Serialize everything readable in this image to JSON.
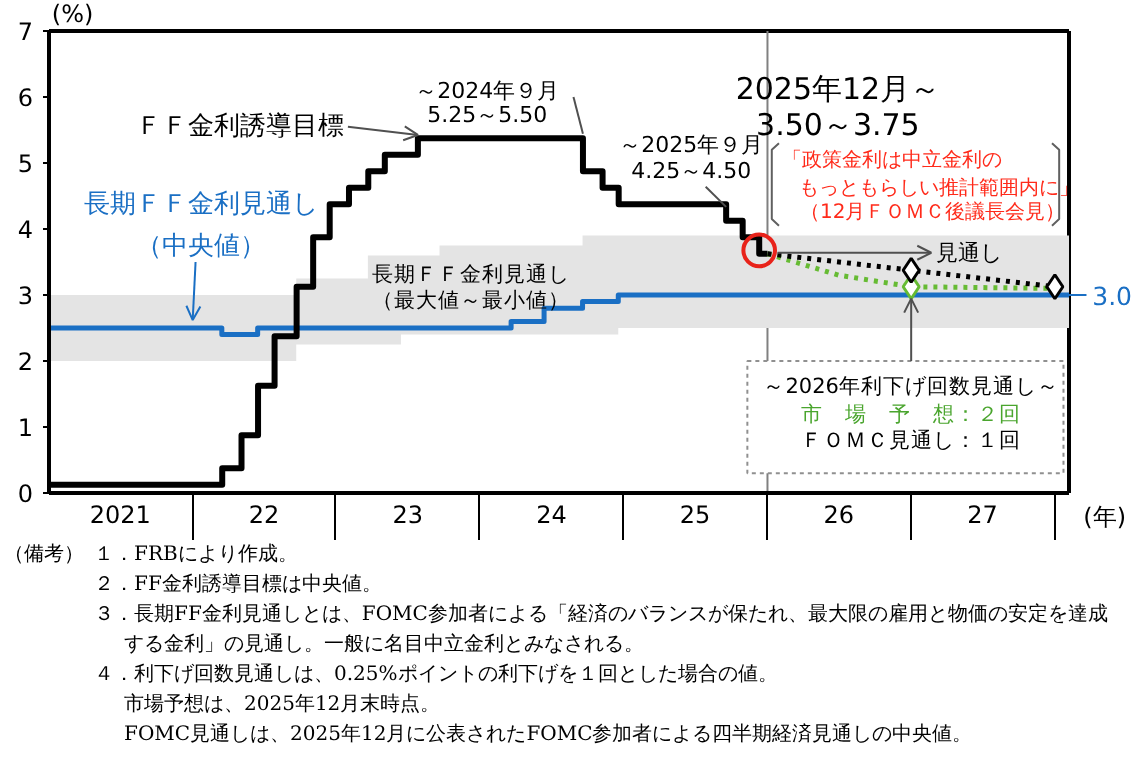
{
  "chart_data": {
    "type": "line",
    "xlabel": "(年)",
    "ylabel": "(%)",
    "xlim": [
      "2021-01-01",
      "2028-02-06"
    ],
    "ylim": [
      0,
      7
    ],
    "yticks": [
      0,
      1,
      2,
      3,
      4,
      5,
      6,
      7
    ],
    "xticks": [
      {
        "value": "2021-07",
        "label": "2021"
      },
      {
        "value": "2022-07",
        "label": "22"
      },
      {
        "value": "2023-07",
        "label": "23"
      },
      {
        "value": "2024-07",
        "label": "24"
      },
      {
        "value": "2025-07",
        "label": "25"
      },
      {
        "value": "2026-07",
        "label": "26"
      },
      {
        "value": "2027-07",
        "label": "27"
      }
    ],
    "grid": false,
    "ref_lines": [
      {
        "axis": "x",
        "value": "2026-01-01",
        "color": "#808080"
      }
    ],
    "series": [
      {
        "type": "step",
        "color": "#1a6fc4",
        "x": [
          "2021-01-01",
          "2022-03-16",
          "2022-06-15",
          "2022-09-21",
          "2023-03-22",
          "2023-06-14",
          "2023-09-20",
          "2024-03-20",
          "2024-06-12",
          "2024-09-18",
          "2024-12-18",
          "2028-02-06"
        ],
        "values": [
          2.5,
          2.4,
          2.5,
          2.5,
          2.5,
          2.5,
          2.5,
          2.6,
          2.8,
          2.9,
          3.0,
          3.0
        ],
        "lower": [
          2.0,
          2.0,
          2.0,
          2.25,
          2.25,
          2.4,
          2.4,
          2.4,
          2.4,
          2.4,
          2.5,
          2.5
        ],
        "upper": [
          3.0,
          3.0,
          3.0,
          3.25,
          3.6,
          3.6,
          3.75,
          3.75,
          3.75,
          3.9,
          3.9,
          3.9
        ]
      },
      {
        "type": "step",
        "color": "#000000",
        "x": [
          "2021-01-01",
          "2022-03-17",
          "2022-05-05",
          "2022-06-16",
          "2022-07-28",
          "2022-09-22",
          "2022-11-03",
          "2022-12-15",
          "2023-02-02",
          "2023-03-23",
          "2023-05-04",
          "2023-07-27",
          "2024-09-19",
          "2024-11-08",
          "2024-12-19",
          "2025-09-18",
          "2025-10-30",
          "2025-12-11",
          "2026-01-01"
        ],
        "values": [
          0.125,
          0.375,
          0.875,
          1.625,
          2.375,
          3.125,
          3.875,
          4.375,
          4.625,
          4.875,
          5.125,
          5.375,
          4.875,
          4.625,
          4.375,
          4.125,
          3.875,
          3.625,
          3.625
        ]
      },
      {
        "line_style": "dotted",
        "color": "#66bb33",
        "x": [
          "2026-01-01",
          "2026-07-01",
          "2027-01-01",
          "2028-01-01"
        ],
        "values": [
          3.625,
          3.3,
          3.125,
          3.1
        ]
      },
      {
        "line_style": "dotted",
        "color": "#000000",
        "x": [
          "2026-01-01",
          "2027-01-01",
          "2028-01-01"
        ],
        "values": [
          3.625,
          3.375,
          3.125
        ]
      },
      {
        "type": "scatter",
        "marker": "diamond",
        "color": "#66bb33",
        "x": [
          "2027-01-01"
        ],
        "values": [
          3.125
        ]
      },
      {
        "type": "scatter",
        "marker": "diamond",
        "color": "#000000",
        "x": [
          "2027-01-01",
          "2028-01-01"
        ],
        "values": [
          3.375,
          3.125
        ]
      }
    ],
    "annotations": [
      {
        "text": "ＦＦ金利誘導目標",
        "x": "2023-07-27",
        "y": 5.375
      },
      {
        "text": "～2024年９月\n5.25～5.50",
        "x": "2024-09-19",
        "y": 5.375
      },
      {
        "text": "～2025年９月\n4.25～4.50",
        "x": "2025-09-18",
        "y": 4.375
      },
      "2025年12月～\n3.50～3.75",
      "「政策金利は中立金利のもっともらしい推計範囲内に」",
      "（12月ＦＯＭＣ後議長会見）",
      {
        "text": "長期ＦＦ金利見通し（中央値）",
        "x": "2022-01-01",
        "y": 2.5
      },
      "長期ＦＦ金利見通し（最大値～最小値）",
      "見通し",
      {
        "text": "3.0",
        "x": "2028-02-06",
        "y": 3.0
      },
      {
        "text": "～2026年利下げ回数見通し～",
        "x": "2027-01-01",
        "y": 3.125
      },
      "市　場　予　想：２回",
      "ＦＯＭＣ見通し：１回",
      "（備考）",
      "１．FRBにより作成。",
      "２．FF金利誘導目標は中央値。",
      "３．長期FF金利見通しとは、FOMC参加者による「経済のバランスが保たれ、最大限の雇用と物価の安定を達成する金利」の見通し。一般に名目中立金利とみなされる。",
      "４．利下げ回数見通しは、0.25%ポイントの利下げを１回とした場合の値。",
      "市場予想は、2025年12月末時点。",
      "FOMC見通しは、2025年12月に公表されたFOMC参加者による四半期経済見通しの中央値。"
    ]
  }
}
